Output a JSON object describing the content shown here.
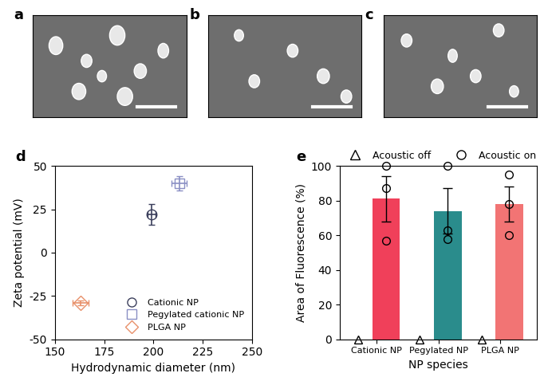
{
  "images": [
    {
      "label": "a"
    },
    {
      "label": "b"
    },
    {
      "label": "c"
    }
  ],
  "chart_data": [
    {
      "type": "scatter",
      "title": "d",
      "x_label": "Hydrodynamic diameter (nm)",
      "y_label": "Zeta potential (mV)",
      "xlim": [
        150,
        250
      ],
      "xticks": [
        150,
        175,
        200,
        225,
        250
      ],
      "ylim": [
        -50,
        50
      ],
      "yticks": [
        -50,
        -25,
        0,
        25,
        50
      ],
      "legend": "lower right",
      "series": [
        {
          "name": "Cationic NP",
          "color": "#3b3f5c",
          "marker": "circle",
          "x": [
            199
          ],
          "values": [
            22
          ],
          "x_error": [
            2
          ],
          "y_error": [
            6
          ]
        },
        {
          "name": "Pegylated cationic NP",
          "color": "#8a8fc4",
          "marker": "square",
          "x": [
            213
          ],
          "values": [
            40
          ],
          "x_error": [
            4
          ],
          "y_error": [
            4
          ]
        },
        {
          "name": "PLGA NP",
          "color": "#e8906a",
          "marker": "diamond",
          "x": [
            163
          ],
          "values": [
            -29
          ],
          "x_error": [
            4
          ],
          "y_error": [
            1.5
          ]
        }
      ]
    },
    {
      "type": "bar",
      "title": "e",
      "x_label": "NP species",
      "y_label": "Area of Fluorescence (%)",
      "categories": [
        "Cationic NP",
        "Pegylated NP",
        "PLGA NP"
      ],
      "values": [
        81,
        74,
        78
      ],
      "error": [
        13,
        13,
        10
      ],
      "colors": [
        "#f0405a",
        "#2a8c8c",
        "#f27474"
      ],
      "ylim": [
        0,
        100
      ],
      "yticks": [
        0,
        20,
        40,
        60,
        80,
        100
      ],
      "legend": "upper left",
      "series": [
        {
          "name": "Acoustic off",
          "marker": "triangle",
          "values": [
            [
              0
            ],
            [
              0
            ],
            [
              0
            ]
          ]
        },
        {
          "name": "Acoustic on",
          "marker": "circle",
          "values": [
            [
              57,
              87,
              100
            ],
            [
              58,
              63,
              100
            ],
            [
              60,
              78,
              95
            ]
          ]
        }
      ]
    }
  ]
}
